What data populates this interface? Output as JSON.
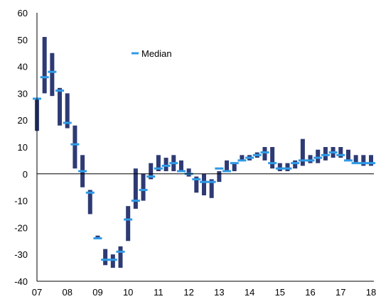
{
  "chart_data": {
    "type": "bar",
    "title": "",
    "xlabel": "",
    "ylabel": "",
    "ylim": [
      -40,
      60
    ],
    "y_ticks": [
      60,
      50,
      40,
      30,
      20,
      10,
      0,
      -10,
      -20,
      -30,
      -40
    ],
    "x_range": [
      7,
      18
    ],
    "x_tick_labels": [
      "07",
      "08",
      "09",
      "10",
      "11",
      "12",
      "13",
      "14",
      "15",
      "16",
      "17",
      "18"
    ],
    "grid": false,
    "legend_position": "top-center",
    "legend": {
      "entries": [
        "Median"
      ]
    },
    "colors": {
      "bar": "#2e3a73",
      "median": "#2f9be6",
      "axis": "#000000"
    },
    "series": [
      {
        "name": "Median",
        "x": [
          7.0,
          7.25,
          7.5,
          7.75,
          8.0,
          8.25,
          8.5,
          8.75,
          9.0,
          9.25,
          9.5,
          9.75,
          10.0,
          10.25,
          10.5,
          10.75,
          11.0,
          11.25,
          11.5,
          11.75,
          12.0,
          12.25,
          12.5,
          12.75,
          13.0,
          13.25,
          13.5,
          13.75,
          14.0,
          14.25,
          14.5,
          14.75,
          15.0,
          15.25,
          15.5,
          15.75,
          16.0,
          16.25,
          16.5,
          16.75,
          17.0,
          17.25,
          17.5,
          17.75,
          18.0
        ],
        "low": [
          16,
          30,
          29,
          18,
          17,
          2,
          -5,
          -15,
          -24,
          -34,
          -35,
          -35,
          -25,
          -13,
          -10,
          -2,
          1,
          1,
          1,
          1,
          -1,
          -7,
          -8,
          -9,
          -3,
          1,
          1,
          5,
          5,
          6,
          5,
          2,
          1,
          1,
          2,
          3,
          4,
          4,
          5,
          6,
          6,
          5,
          4,
          3,
          3
        ],
        "high": [
          28,
          51,
          45,
          32,
          30,
          18,
          7,
          -6,
          -23,
          -28,
          -30,
          -27,
          -12,
          2,
          0,
          4,
          7,
          6,
          7,
          5,
          2,
          -1,
          0,
          -2,
          1,
          5,
          4,
          7,
          7,
          8,
          10,
          10,
          4,
          4,
          5,
          13,
          7,
          9,
          10,
          10,
          10,
          9,
          7,
          7,
          7
        ],
        "median": [
          28,
          36,
          38,
          31,
          19,
          11,
          1,
          -7,
          -24,
          -32,
          -32,
          -29,
          -17,
          -10,
          -6,
          -1,
          2,
          3,
          4,
          1,
          0,
          -2,
          -3,
          -3,
          2,
          1,
          4,
          5,
          6,
          7,
          8,
          4,
          2,
          2,
          4,
          5,
          5,
          6,
          7,
          8,
          7,
          5,
          4,
          4,
          4
        ]
      }
    ]
  }
}
